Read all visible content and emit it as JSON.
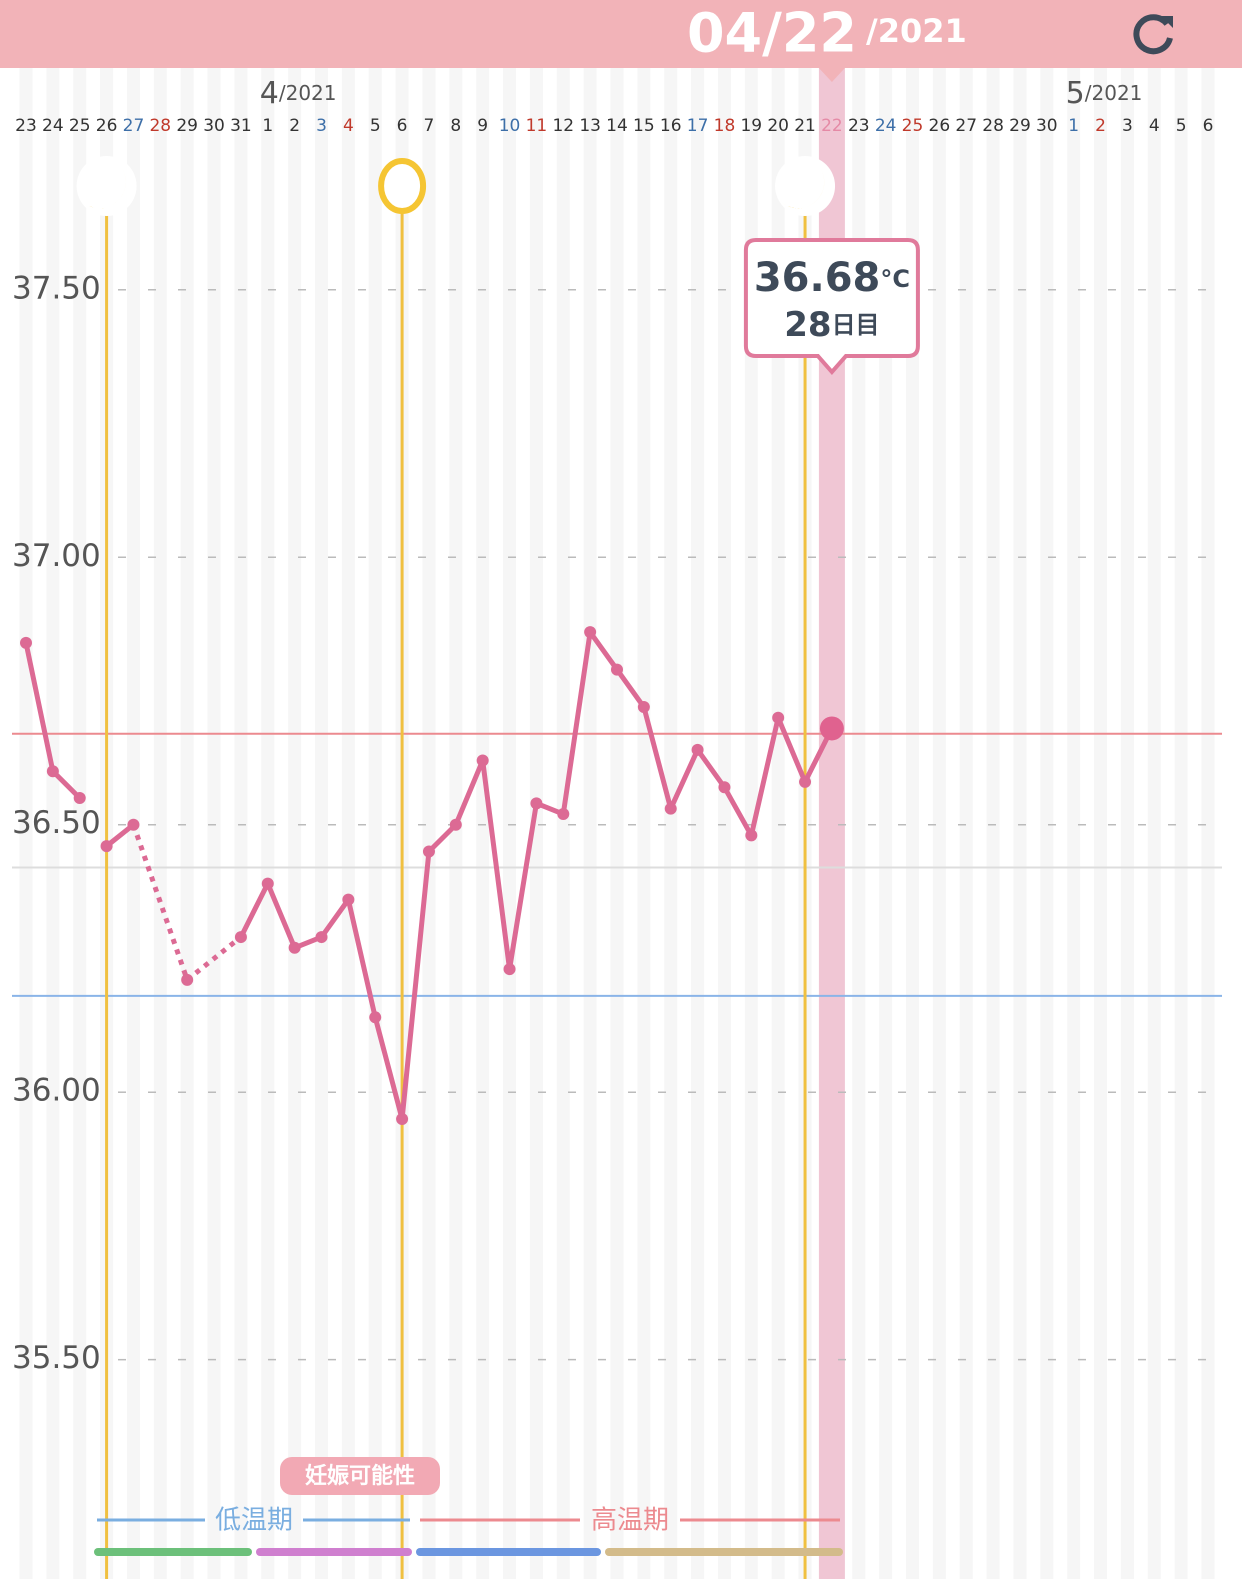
{
  "header": {
    "date": "04/22",
    "year": "/2021"
  },
  "chart_data": {
    "type": "line",
    "categories": [
      "23",
      "24",
      "25",
      "26",
      "27",
      "28",
      "29",
      "30",
      "31",
      "1",
      "2",
      "3",
      "4",
      "5",
      "6",
      "7",
      "8",
      "9",
      "10",
      "11",
      "12",
      "13",
      "14",
      "15",
      "16",
      "17",
      "18",
      "19",
      "20",
      "21",
      "22",
      "23",
      "24",
      "25",
      "26",
      "27",
      "28",
      "29",
      "30",
      "1",
      "2",
      "3",
      "4",
      "5",
      "6"
    ],
    "category_colors": [
      "#333",
      "#333",
      "#333",
      "#333",
      "#3d6fa8",
      "#c0392b",
      "#333",
      "#333",
      "#333",
      "#333",
      "#333",
      "#3d6fa8",
      "#c0392b",
      "#333",
      "#333",
      "#333",
      "#333",
      "#333",
      "#3d6fa8",
      "#c0392b",
      "#333",
      "#333",
      "#333",
      "#333",
      "#333",
      "#3d6fa8",
      "#c0392b",
      "#333",
      "#333",
      "#333",
      "#e58aa6",
      "#333",
      "#3d6fa8",
      "#c0392b",
      "#333",
      "#333",
      "#333",
      "#333",
      "#333",
      "#3d6fa8",
      "#c0392b",
      "#333",
      "#333",
      "#333",
      "#333"
    ],
    "months": [
      {
        "text": "4",
        "suffix": "/2021",
        "index": 9
      },
      {
        "text": "5",
        "suffix": "/2021",
        "index": 39
      }
    ],
    "series": [
      {
        "color": "#dc6a94",
        "values": [
          36.84,
          36.6,
          36.55,
          null,
          null,
          null,
          null,
          null,
          null,
          null,
          null,
          null,
          null,
          null,
          null,
          null,
          null,
          null,
          null,
          null,
          null,
          null,
          null,
          null,
          null,
          null,
          null,
          null,
          null,
          null,
          null,
          null,
          null,
          null,
          null,
          null,
          null,
          null,
          null,
          null,
          null,
          null,
          null,
          null,
          null
        ]
      },
      {
        "color": "#dc6a94",
        "values": [
          null,
          null,
          null,
          36.46,
          36.5,
          null,
          36.21,
          null,
          36.29,
          36.39,
          36.27,
          36.29,
          36.36,
          36.14,
          35.95,
          36.45,
          36.5,
          36.62,
          36.23,
          36.54,
          36.52,
          36.86,
          36.79,
          36.72,
          36.53,
          36.64,
          36.57,
          36.48,
          36.7,
          36.58,
          36.68,
          null,
          null,
          null,
          null,
          null,
          null,
          null,
          null,
          null,
          null,
          null,
          null,
          null,
          null
        ]
      }
    ],
    "selected_index": 30,
    "markers": [
      {
        "index": 3,
        "icon": "moon"
      },
      {
        "index": 14,
        "icon": "circle"
      },
      {
        "index": 29,
        "icon": "moon"
      }
    ],
    "reference_lines": [
      {
        "value": 36.67,
        "color": "#ec8a8f"
      },
      {
        "value": 36.42,
        "color": "#dddddd"
      },
      {
        "value": 36.18,
        "color": "#8ab4e8"
      }
    ],
    "ylim": [
      35.09,
      37.78
    ],
    "yticks": [
      {
        "value": 35.5,
        "label": "35.50"
      },
      {
        "value": 36,
        "label": "36.00"
      },
      {
        "value": 36.5,
        "label": "36.50"
      },
      {
        "value": 37,
        "label": "37.00"
      },
      {
        "value": 37.5,
        "label": "37.50"
      }
    ],
    "grid": true,
    "tooltip": {
      "value": 36.68,
      "unit": "°C",
      "day": 28,
      "day_unit": "日目"
    }
  },
  "phases": {
    "low": "低温期",
    "high": "高温期",
    "badge": "妊娠可能性"
  }
}
